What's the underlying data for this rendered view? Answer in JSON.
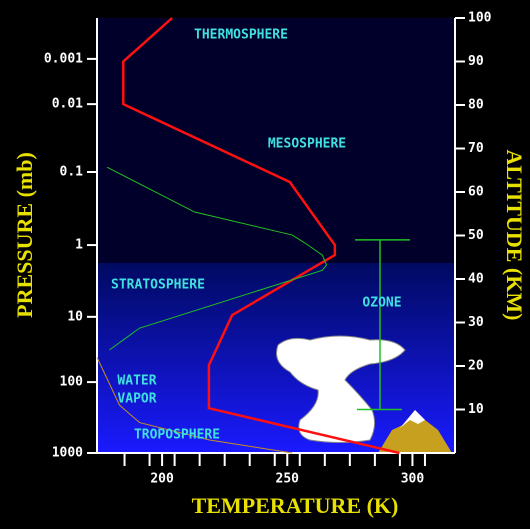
{
  "chart_data": {
    "type": "line",
    "xlabel": "TEMPERATURE (K)",
    "ylabel": "PRESSURE (mb)",
    "y2label": "ALTITUDE (KM)",
    "xlim": [
      174,
      317
    ],
    "xticks": [
      200,
      250,
      300
    ],
    "x_minor_ticks": [
      185,
      195,
      205,
      215,
      225,
      235,
      245,
      255,
      265,
      275,
      285,
      295,
      305
    ],
    "y2lim": [
      0,
      100
    ],
    "y2ticks": [
      10,
      20,
      30,
      40,
      50,
      60,
      70,
      80,
      90,
      100
    ],
    "pressure_ticks": [
      1000,
      100,
      10,
      1,
      0.1,
      0.01,
      0.001
    ],
    "pressure_tick_altitudes": [
      0,
      16.3,
      31.3,
      47.8,
      64.6,
      80.2,
      90.6
    ],
    "series": [
      {
        "color": "#ff1010",
        "x": [
          204,
          184.5,
          184.5,
          251,
          269,
          269,
          228,
          218.7,
          218.7,
          294.8
        ],
        "values": [
          100,
          90,
          80.2,
          62.3,
          47.8,
          45.5,
          31.7,
          20.2,
          10.3,
          0
        ]
      },
      {
        "color": "#20c020",
        "x": [
          178,
          213,
          252,
          257,
          264,
          265.7,
          264,
          191,
          179
        ],
        "values": [
          65.7,
          55.4,
          50.1,
          48.3,
          45.5,
          43.2,
          42,
          28.7,
          23.7
        ]
      },
      {
        "color": "#c89020",
        "x": [
          174,
          183,
          191,
          219,
          252
        ],
        "values": [
          22,
          11,
          7,
          3,
          0
        ]
      }
    ],
    "ozone_range": [
      10,
      49
    ],
    "labels": [
      "THERMOSPHERE",
      "MESOSPHERE",
      "STRATOSPHERE",
      "WATER",
      "VAPOR",
      "TROPOSPHERE",
      "OZONE"
    ]
  }
}
